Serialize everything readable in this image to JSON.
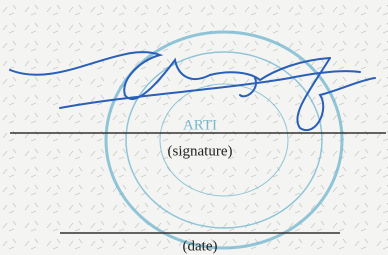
{
  "stamp": {
    "text": "ARTI"
  },
  "signature_label": "(signature)",
  "date_label": "(date)"
}
